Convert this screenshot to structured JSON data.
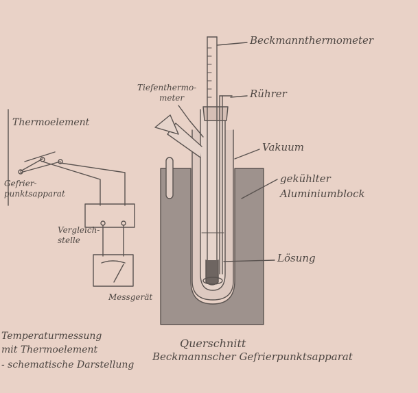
{
  "labels": {
    "thermoelement": "Thermoelement",
    "gefrierpunktsapparat_left_line1": "Gefrier-",
    "gefrierpunktsapparat_left_line2": "punktsapparat",
    "vergleichsstelle_line1": "Vergleich-",
    "vergleichsstelle_line2": "stelle",
    "messgeraet": "Messgerät",
    "caption_left_line1": "Temperaturmessung",
    "caption_left_line2": "mit Thermoelement",
    "caption_left_line3": "- schematische Darstellung",
    "beckmannthermometer": "Beckmannthermometer",
    "tiefenthermometer_line1": "Tiefenthermo-",
    "tiefenthermometer_line2": "meter",
    "ruehrer": "Rührer",
    "vakuum": "Vakuum",
    "gekuehlter_line1": "gekühlter",
    "gekuehlter_line2": "Aluminiumblock",
    "loesung": "Lösung",
    "caption_right_line1": "Querschnitt",
    "caption_right_line2": "Beckmannscher Gefrierpunktsapparat"
  },
  "colors": {
    "paper": "#e9d2c7",
    "pencil": "#5a5350",
    "block_fill": "#9e928d",
    "glass_fill": "#ddc9c0"
  }
}
